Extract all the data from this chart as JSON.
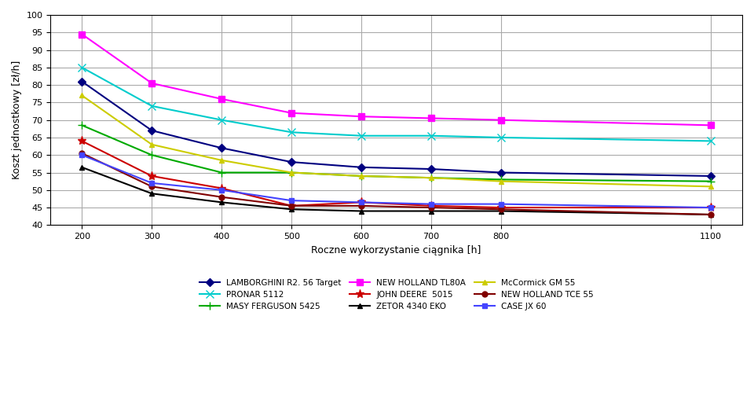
{
  "x": [
    200,
    300,
    400,
    500,
    600,
    700,
    800,
    1100
  ],
  "series": [
    {
      "label": "LAMBORGHINI R2. 56 Target",
      "color": "#000080",
      "marker": "D",
      "markersize": 5,
      "linewidth": 1.5,
      "values": [
        81,
        67,
        62,
        58,
        56.5,
        56,
        55,
        54
      ]
    },
    {
      "label": "PRONAR 5112",
      "color": "#00CCCC",
      "marker": "x",
      "markersize": 7,
      "linewidth": 1.5,
      "values": [
        85,
        74,
        70,
        66.5,
        65.5,
        65.5,
        65,
        64
      ]
    },
    {
      "label": "MASY FERGUSON 5425",
      "color": "#00AA00",
      "marker": "+",
      "markersize": 7,
      "linewidth": 1.5,
      "values": [
        68.5,
        60,
        55,
        55,
        54,
        53.5,
        53,
        52.5
      ]
    },
    {
      "label": "NEW HOLLAND TL80A",
      "color": "#FF00FF",
      "marker": "s",
      "markersize": 6,
      "linewidth": 1.5,
      "values": [
        94.5,
        80.5,
        76,
        72,
        71,
        70.5,
        70,
        68.5
      ]
    },
    {
      "label": "JOHN DEERE  5015",
      "color": "#CC0000",
      "marker": "*",
      "markersize": 8,
      "linewidth": 1.5,
      "values": [
        64,
        54,
        50.5,
        45.5,
        46.5,
        45.5,
        45,
        45
      ]
    },
    {
      "label": "ZETOR 4340 EKO",
      "color": "#000000",
      "marker": "^",
      "markersize": 5,
      "linewidth": 1.5,
      "values": [
        56.5,
        49,
        46.5,
        44.5,
        44,
        44,
        44,
        43
      ]
    },
    {
      "label": "McCormick GM 55",
      "color": "#CCCC00",
      "marker": "^",
      "markersize": 5,
      "linewidth": 1.5,
      "values": [
        77,
        63,
        58.5,
        55,
        54,
        53.5,
        52.5,
        51
      ]
    },
    {
      "label": "NEW HOLLAND TCE 55",
      "color": "#800000",
      "marker": "o",
      "markersize": 5,
      "linewidth": 1.5,
      "values": [
        60.5,
        51,
        48,
        45.5,
        45.5,
        45,
        44.5,
        43
      ]
    },
    {
      "label": "CASE JX 60",
      "color": "#4444FF",
      "marker": "s",
      "markersize": 5,
      "linewidth": 1.5,
      "values": [
        60,
        52,
        50,
        47,
        46.5,
        46,
        46,
        45
      ]
    }
  ],
  "xlabel": "Roczne wykorzystanie ciągnika [h]",
  "ylabel": "Koszt jednostkowy [zł/h]",
  "ylim": [
    40,
    100
  ],
  "yticks": [
    40,
    45,
    50,
    55,
    60,
    65,
    70,
    75,
    80,
    85,
    90,
    95,
    100
  ],
  "xticks": [
    200,
    300,
    400,
    500,
    600,
    700,
    800,
    1100
  ],
  "grid_color": "#AAAAAA",
  "background_color": "#FFFFFF"
}
